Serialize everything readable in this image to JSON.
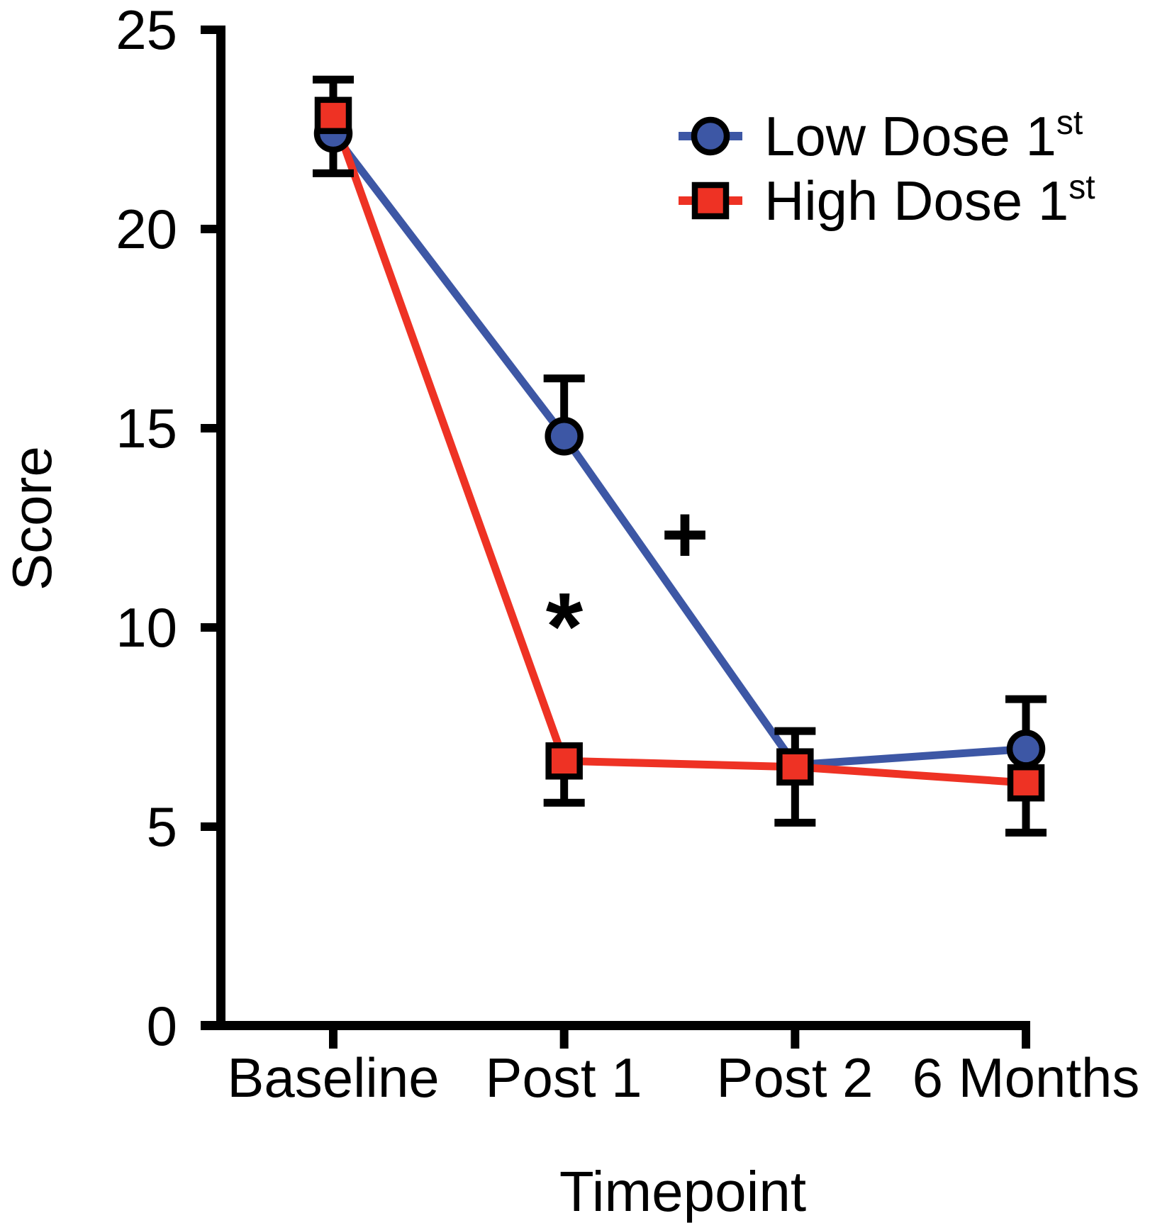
{
  "colors": {
    "low_dose": "#3D57A5",
    "high_dose": "#EE3224",
    "axis": "#000000",
    "background": "#ffffff"
  },
  "chart_data": {
    "type": "line",
    "title": "",
    "xlabel": "Timepoint",
    "ylabel": "Score",
    "categories": [
      "Baseline",
      "Post 1",
      "Post 2",
      "6 Months"
    ],
    "ytick_labels": [
      "25",
      "20",
      "15",
      "10",
      "5",
      "0"
    ],
    "yticks": [
      25,
      20,
      15,
      10,
      5,
      0
    ],
    "ylim": [
      0,
      25
    ],
    "grid": false,
    "legend_position": "upper right inside",
    "series": [
      {
        "name": "Low Dose 1st",
        "legend_base": "Low Dose 1",
        "legend_sup": "st",
        "marker": "circle",
        "color": "#3D57A5",
        "values": [
          22.4,
          14.8,
          6.55,
          6.95
        ],
        "hide_marker_at": [
          2
        ]
      },
      {
        "name": "High Dose 1st",
        "legend_base": "High Dose 1",
        "legend_sup": "st",
        "marker": "square",
        "color": "#EE3224",
        "values": [
          22.85,
          6.65,
          6.5,
          6.1
        ],
        "hide_marker_at": []
      }
    ],
    "error_bars": [
      {
        "x": 0,
        "low": 21.4,
        "high": 23.75,
        "caps": "both"
      },
      {
        "x": 1,
        "low": 14.8,
        "high": 16.25,
        "caps": "top"
      },
      {
        "x": 1,
        "low": 5.6,
        "high": 6.65,
        "caps": "bottom"
      },
      {
        "x": 2,
        "low": 5.1,
        "high": 7.4,
        "caps": "both"
      },
      {
        "x": 3,
        "low": 4.85,
        "high": 8.2,
        "caps": "both"
      }
    ],
    "annotations": [
      {
        "text": "*",
        "x": 1.0,
        "y": 10.45
      },
      {
        "text": "+",
        "x": 1.52,
        "y": 12.35
      }
    ]
  }
}
